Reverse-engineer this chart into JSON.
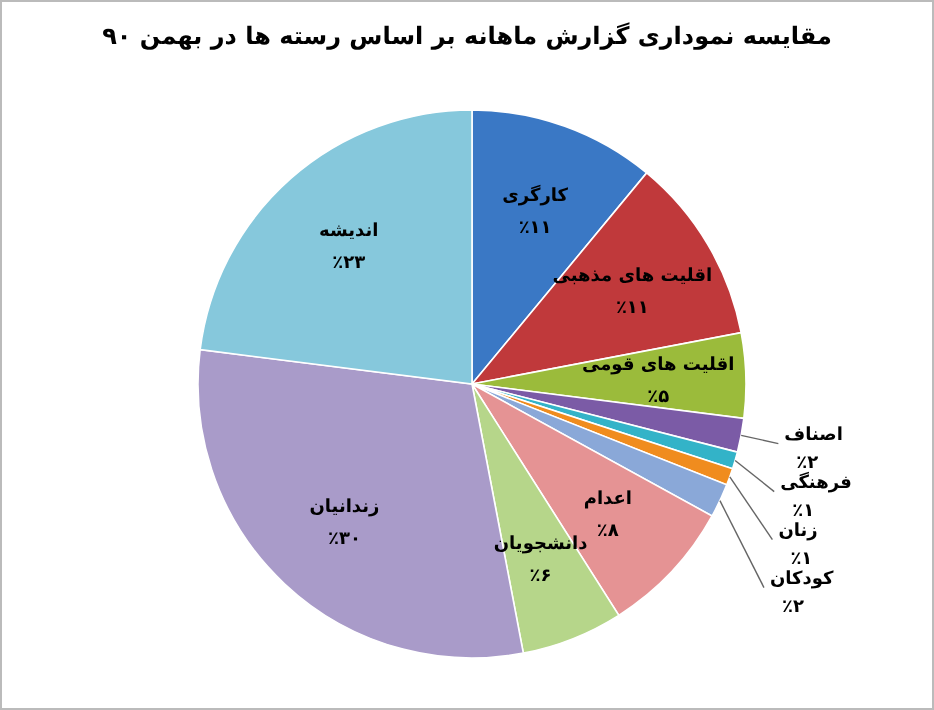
{
  "chart_data": {
    "type": "pie",
    "title": "مقایسه نموداری گزارش ماهانه بر اساس رسته ها در بهمن ۹۰",
    "categories": [
      "کارگری",
      "اقلیت های مذهبی",
      "اقلیت های قومی",
      "اصناف",
      "فرهنگی",
      "زنان",
      "کودکان",
      "اعدام",
      "دانشجویان",
      "زندانیان",
      "اندیشه"
    ],
    "values": [
      11,
      11,
      5,
      2,
      1,
      1,
      2,
      8,
      6,
      30,
      23
    ],
    "value_labels": [
      "٪۱۱",
      "٪۱۱",
      "٪۵",
      "٪۲",
      "٪۱",
      "٪۱",
      "٪۲",
      "٪۸",
      "٪۶",
      "٪۳۰",
      "٪۲۳"
    ],
    "colors": [
      "#3a78c5",
      "#c0393b",
      "#9bbb3b",
      "#7b5ba6",
      "#33b3c8",
      "#f08c1e",
      "#8aa8d8",
      "#e59394",
      "#b6d68a",
      "#a99bc9",
      "#86c8dc"
    ]
  }
}
